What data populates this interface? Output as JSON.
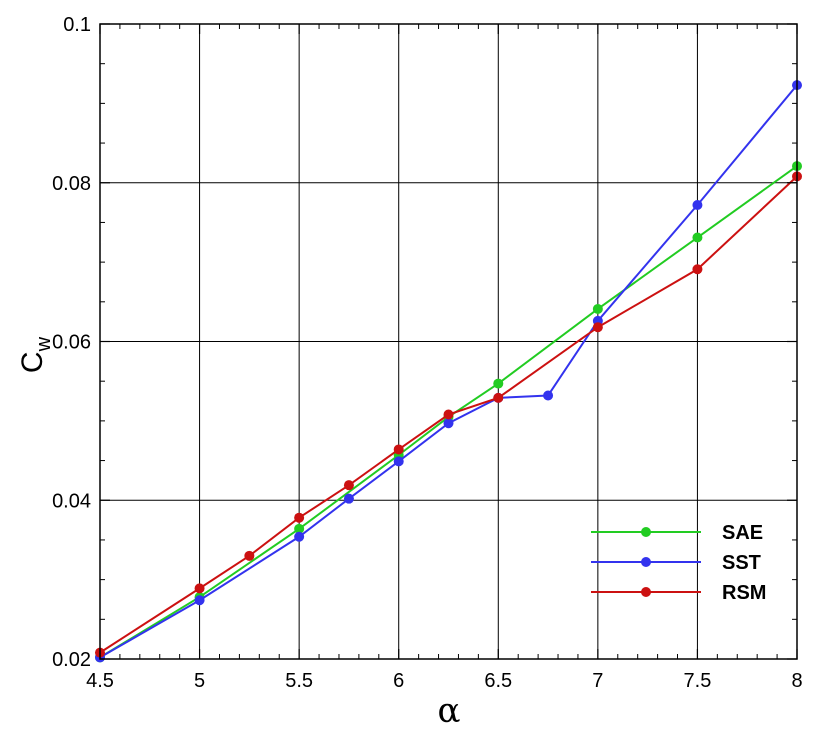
{
  "chart_data": {
    "type": "line",
    "xlabel": "α",
    "ylabel_main": "C",
    "ylabel_sub": "w",
    "xlim": [
      4.5,
      8
    ],
    "ylim": [
      0.02,
      0.1
    ],
    "grid": true,
    "legend_position": "bottom-right",
    "x_ticks": [
      4.5,
      5,
      5.5,
      6,
      6.5,
      7,
      7.5,
      8
    ],
    "x_tick_labels": [
      "4.5",
      "5",
      "5.5",
      "6",
      "6.5",
      "7",
      "7.5",
      "8"
    ],
    "y_ticks": [
      0.02,
      0.04,
      0.06,
      0.08,
      0.1
    ],
    "y_tick_labels": [
      "0.02",
      "0.04",
      "0.06",
      "0.08",
      "0.1"
    ],
    "series": [
      {
        "name": "SAE",
        "color": "#22cc22",
        "points": [
          [
            4.5,
            0.0202
          ],
          [
            5,
            0.0278
          ],
          [
            5.5,
            0.0364
          ],
          [
            6,
            0.0457
          ],
          [
            6.25,
            0.0505
          ],
          [
            6.5,
            0.0547
          ],
          [
            7,
            0.0641
          ],
          [
            7.5,
            0.0731
          ],
          [
            8,
            0.0821
          ]
        ]
      },
      {
        "name": "SST",
        "color": "#3333ee",
        "points": [
          [
            4.5,
            0.0202
          ],
          [
            5,
            0.0274
          ],
          [
            5.5,
            0.0354
          ],
          [
            5.75,
            0.0402
          ],
          [
            6,
            0.0449
          ],
          [
            6.25,
            0.0497
          ],
          [
            6.5,
            0.0529
          ],
          [
            6.75,
            0.0532
          ],
          [
            7,
            0.0626
          ],
          [
            7.5,
            0.0772
          ],
          [
            8,
            0.0923
          ]
        ]
      },
      {
        "name": "RSM",
        "color": "#cc1111",
        "points": [
          [
            4.5,
            0.0208
          ],
          [
            5,
            0.0289
          ],
          [
            5.25,
            0.033
          ],
          [
            5.5,
            0.0378
          ],
          [
            5.75,
            0.0419
          ],
          [
            6,
            0.0464
          ],
          [
            6.25,
            0.0508
          ],
          [
            6.5,
            0.0529
          ],
          [
            7,
            0.0618
          ],
          [
            7.5,
            0.0691
          ],
          [
            8,
            0.0808
          ]
        ]
      }
    ]
  }
}
